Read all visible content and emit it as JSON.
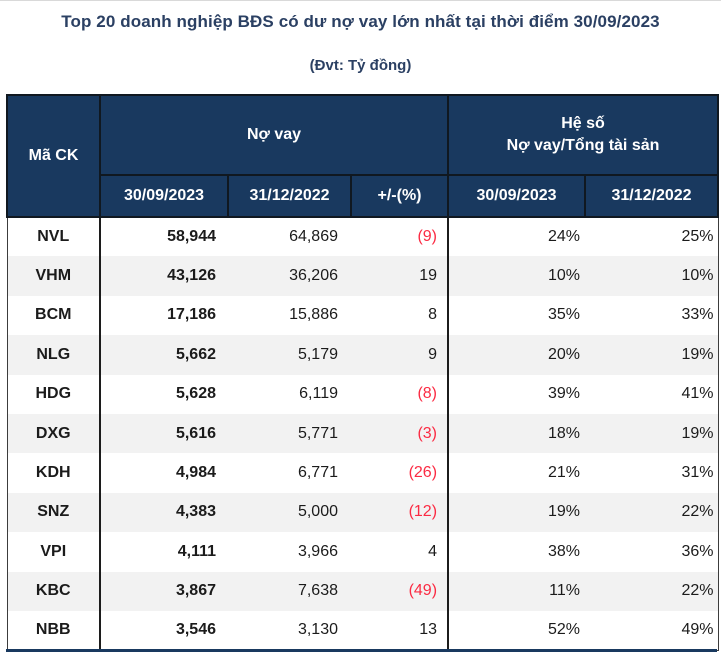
{
  "page": {
    "title": "Top 20 doanh nghiệp BĐS có dư nợ vay lớn nhất tại thời điểm 30/09/2023",
    "subtitle": "(Đvt: Tỷ đồng)"
  },
  "colors": {
    "header_bg": "#19395f",
    "title_text": "#2b4063",
    "alt_row_bg": "#f2f2f2",
    "negative_text": "#fb2b43",
    "header_text": "#ffffff",
    "body_text": "#1b1b1b"
  },
  "table": {
    "col_code": "Mã CK",
    "group_loan": "Nợ vay",
    "group_ratio_line1": "Hệ số",
    "group_ratio_line2": "Nợ vay/Tổng tài sản",
    "sub_headers": {
      "loan_2023": "30/09/2023",
      "loan_2022": "31/12/2022",
      "change": "+/-(%)",
      "ratio_2023": "30/09/2023",
      "ratio_2022": "31/12/2022"
    },
    "rows": [
      {
        "code": "NVL",
        "loan_2023": "58,944",
        "loan_2022": "64,869",
        "change": "(9)",
        "ratio_2023": "24%",
        "ratio_2022": "25%"
      },
      {
        "code": "VHM",
        "loan_2023": "43,126",
        "loan_2022": "36,206",
        "change": "19",
        "ratio_2023": "10%",
        "ratio_2022": "10%"
      },
      {
        "code": "BCM",
        "loan_2023": "17,186",
        "loan_2022": "15,886",
        "change": "8",
        "ratio_2023": "35%",
        "ratio_2022": "33%"
      },
      {
        "code": "NLG",
        "loan_2023": "5,662",
        "loan_2022": "5,179",
        "change": "9",
        "ratio_2023": "20%",
        "ratio_2022": "19%"
      },
      {
        "code": "HDG",
        "loan_2023": "5,628",
        "loan_2022": "6,119",
        "change": "(8)",
        "ratio_2023": "39%",
        "ratio_2022": "41%"
      },
      {
        "code": "DXG",
        "loan_2023": "5,616",
        "loan_2022": "5,771",
        "change": "(3)",
        "ratio_2023": "18%",
        "ratio_2022": "19%"
      },
      {
        "code": "KDH",
        "loan_2023": "4,984",
        "loan_2022": "6,771",
        "change": "(26)",
        "ratio_2023": "21%",
        "ratio_2022": "31%"
      },
      {
        "code": "SNZ",
        "loan_2023": "4,383",
        "loan_2022": "5,000",
        "change": "(12)",
        "ratio_2023": "19%",
        "ratio_2022": "22%"
      },
      {
        "code": "VPI",
        "loan_2023": "4,111",
        "loan_2022": "3,966",
        "change": "4",
        "ratio_2023": "38%",
        "ratio_2022": "36%"
      },
      {
        "code": "KBC",
        "loan_2023": "3,867",
        "loan_2022": "7,638",
        "change": "(49)",
        "ratio_2023": "11%",
        "ratio_2022": "22%"
      },
      {
        "code": "NBB",
        "loan_2023": "3,546",
        "loan_2022": "3,130",
        "change": "13",
        "ratio_2023": "52%",
        "ratio_2022": "49%"
      }
    ]
  },
  "chart_data": {
    "type": "table",
    "title": "Top 20 doanh nghiệp BĐS có dư nợ vay lớn nhất tại thời điểm 30/09/2023",
    "unit": "Tỷ đồng",
    "columns": [
      "Mã CK",
      "Nợ vay 30/09/2023",
      "Nợ vay 31/12/2022",
      "+/-(%)",
      "Hệ số Nợ vay/Tổng tài sản 30/09/2023",
      "Hệ số Nợ vay/Tổng tài sản 31/12/2022"
    ],
    "rows": [
      [
        "NVL",
        58944,
        64869,
        -9,
        0.24,
        0.25
      ],
      [
        "VHM",
        43126,
        36206,
        19,
        0.1,
        0.1
      ],
      [
        "BCM",
        17186,
        15886,
        8,
        0.35,
        0.33
      ],
      [
        "NLG",
        5662,
        5179,
        9,
        0.2,
        0.19
      ],
      [
        "HDG",
        5628,
        6119,
        -8,
        0.39,
        0.41
      ],
      [
        "DXG",
        5616,
        5771,
        -3,
        0.18,
        0.19
      ],
      [
        "KDH",
        4984,
        6771,
        -26,
        0.21,
        0.31
      ],
      [
        "SNZ",
        4383,
        5000,
        -12,
        0.19,
        0.22
      ],
      [
        "VPI",
        4111,
        3966,
        4,
        0.38,
        0.36
      ],
      [
        "KBC",
        3867,
        7638,
        -49,
        0.11,
        0.22
      ],
      [
        "NBB",
        3546,
        3130,
        13,
        0.52,
        0.49
      ]
    ]
  }
}
